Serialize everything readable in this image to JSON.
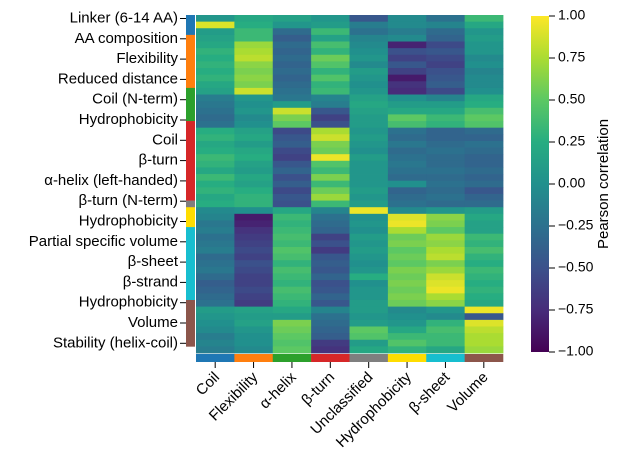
{
  "chart_data": {
    "type": "heatmap",
    "title": "",
    "colorbar": {
      "label": "Pearson correlation",
      "vmin": -1.0,
      "vmax": 1.0,
      "ticks": [
        "1.00",
        "0.75",
        "0.50",
        "0.25",
        "0.00",
        "−0.25",
        "−0.50",
        "−0.75",
        "−1.00"
      ],
      "colormap": "viridis"
    },
    "x_categories": [
      "Coil",
      "Flexibility",
      "α-helix",
      "β-turn",
      "Unclassified",
      "Hydrophobicity",
      "β-sheet",
      "Volume"
    ],
    "x_group_colors": [
      "#1f77b4",
      "#ff7f0e",
      "#2ca02c",
      "#d62728",
      "#7f7f7f",
      "#ffdd00",
      "#17becf",
      "#8c564b"
    ],
    "y_tick_labels": [
      "Linker (6-14 AA)",
      "AA composition",
      "Flexibility",
      "Reduced distance",
      "Coil (N-term)",
      "Hydrophobicity",
      "Coil",
      "β-turn",
      "α-helix (left-handed)",
      "β-turn (N-term)",
      "Hydrophobicity",
      "Partial specific volume",
      "β-sheet",
      "β-strand",
      "Hydrophobicity",
      "Volume",
      "Stability (helix-coil)"
    ],
    "row_groups": [
      {
        "color": "#1f77b4",
        "rows": 3
      },
      {
        "color": "#ff7f0e",
        "rows": 8
      },
      {
        "color": "#2ca02c",
        "rows": 5
      },
      {
        "color": "#d62728",
        "rows": 12
      },
      {
        "color": "#7f7f7f",
        "rows": 1
      },
      {
        "color": "#ffdd00",
        "rows": 3
      },
      {
        "color": "#17becf",
        "rows": 11
      },
      {
        "color": "#8c564b",
        "rows": 7
      }
    ],
    "values": [
      [
        0.05,
        0.2,
        0.15,
        0.05,
        -0.45,
        -0.05,
        -0.25,
        0.35
      ],
      [
        0.9,
        0.25,
        0.05,
        0.1,
        -0.15,
        -0.05,
        -0.1,
        0.2
      ],
      [
        0.1,
        0.35,
        -0.3,
        0.35,
        -0.25,
        -0.15,
        -0.3,
        0.05
      ],
      [
        0.15,
        0.35,
        -0.4,
        0.15,
        -0.1,
        -0.05,
        -0.35,
        0.1
      ],
      [
        0.2,
        0.7,
        -0.3,
        0.4,
        -0.05,
        -0.8,
        -0.55,
        0.05
      ],
      [
        0.3,
        0.75,
        -0.35,
        0.3,
        0.0,
        -0.5,
        -0.45,
        0.05
      ],
      [
        0.25,
        0.8,
        -0.3,
        0.55,
        0.05,
        -0.6,
        -0.55,
        -0.05
      ],
      [
        0.3,
        0.65,
        -0.35,
        0.45,
        -0.05,
        -0.45,
        -0.6,
        0.0
      ],
      [
        0.25,
        0.6,
        -0.3,
        0.3,
        0.1,
        -0.6,
        -0.5,
        -0.1
      ],
      [
        0.3,
        0.65,
        -0.35,
        0.45,
        0.05,
        -0.85,
        -0.45,
        -0.05
      ],
      [
        0.2,
        0.6,
        -0.3,
        0.3,
        0.0,
        -0.7,
        -0.4,
        -0.05
      ],
      [
        0.15,
        0.85,
        -0.25,
        0.35,
        0.05,
        -0.75,
        -0.55,
        0.0
      ],
      [
        -0.15,
        0.05,
        -0.2,
        -0.1,
        0.15,
        0.0,
        -0.1,
        0.2
      ],
      [
        -0.2,
        0.0,
        0.1,
        -0.15,
        0.2,
        0.1,
        0.1,
        0.25
      ],
      [
        -0.25,
        0.05,
        0.85,
        -0.45,
        0.15,
        0.2,
        0.2,
        0.4
      ],
      [
        -0.3,
        -0.05,
        0.6,
        -0.6,
        0.1,
        0.5,
        0.35,
        0.5
      ],
      [
        -0.25,
        0.0,
        0.5,
        -0.5,
        0.1,
        0.4,
        0.3,
        0.45
      ],
      [
        0.25,
        0.15,
        -0.55,
        0.75,
        0.05,
        -0.25,
        -0.35,
        -0.3
      ],
      [
        0.3,
        0.2,
        -0.45,
        0.85,
        0.1,
        -0.3,
        -0.35,
        -0.35
      ],
      [
        0.2,
        0.1,
        -0.4,
        0.6,
        0.05,
        -0.2,
        -0.3,
        -0.25
      ],
      [
        0.25,
        0.2,
        -0.55,
        0.55,
        0.0,
        -0.3,
        -0.25,
        -0.3
      ],
      [
        0.35,
        0.25,
        -0.6,
        0.95,
        0.1,
        -0.25,
        -0.3,
        -0.35
      ],
      [
        0.3,
        0.15,
        -0.45,
        0.45,
        0.05,
        -0.2,
        -0.3,
        -0.35
      ],
      [
        0.2,
        0.1,
        -0.35,
        0.35,
        0.05,
        -0.25,
        -0.25,
        -0.3
      ],
      [
        0.35,
        0.2,
        -0.5,
        0.6,
        0.05,
        -0.3,
        -0.3,
        -0.35
      ],
      [
        0.25,
        0.15,
        -0.4,
        0.35,
        0.05,
        0.0,
        -0.25,
        -0.3
      ],
      [
        0.3,
        0.25,
        -0.55,
        0.55,
        0.1,
        -0.35,
        -0.3,
        -0.45
      ],
      [
        0.2,
        0.3,
        -0.45,
        0.7,
        0.05,
        -0.3,
        -0.25,
        -0.35
      ],
      [
        0.25,
        0.3,
        -0.5,
        0.35,
        0.1,
        -0.25,
        -0.3,
        -0.3
      ],
      [
        -0.05,
        0.0,
        0.2,
        -0.1,
        0.95,
        -0.05,
        0.05,
        0.1
      ],
      [
        -0.1,
        -0.85,
        0.35,
        -0.25,
        0.0,
        0.9,
        0.65,
        0.2
      ],
      [
        -0.2,
        -0.8,
        0.3,
        -0.3,
        0.05,
        0.95,
        0.6,
        0.15
      ],
      [
        -0.15,
        -0.7,
        0.35,
        -0.35,
        0.0,
        0.75,
        0.5,
        0.15
      ],
      [
        -0.25,
        -0.65,
        0.4,
        -0.6,
        0.1,
        0.55,
        0.7,
        0.35
      ],
      [
        -0.2,
        -0.6,
        0.35,
        -0.5,
        0.05,
        0.6,
        0.65,
        0.3
      ],
      [
        -0.15,
        -0.55,
        0.45,
        -0.65,
        0.1,
        0.5,
        0.75,
        0.4
      ],
      [
        -0.3,
        -0.6,
        0.4,
        -0.45,
        0.05,
        0.55,
        0.8,
        0.3
      ],
      [
        -0.25,
        -0.5,
        0.3,
        -0.4,
        0.0,
        0.5,
        0.6,
        0.25
      ],
      [
        -0.2,
        -0.55,
        0.4,
        -0.45,
        0.05,
        0.6,
        0.7,
        0.35
      ],
      [
        -0.3,
        -0.6,
        0.35,
        -0.35,
        0.25,
        0.55,
        0.85,
        0.3
      ],
      [
        -0.4,
        -0.6,
        0.3,
        -0.5,
        0.0,
        0.6,
        0.9,
        0.25
      ],
      [
        -0.35,
        -0.55,
        0.4,
        -0.45,
        0.05,
        0.55,
        0.95,
        0.3
      ],
      [
        -0.3,
        -0.6,
        0.35,
        -0.35,
        0.05,
        0.6,
        0.75,
        0.25
      ],
      [
        -0.25,
        -0.65,
        0.3,
        -0.45,
        0.1,
        0.55,
        0.65,
        0.2
      ],
      [
        0.1,
        0.15,
        0.2,
        -0.1,
        0.1,
        -0.05,
        0.05,
        0.95
      ],
      [
        0.05,
        0.1,
        0.1,
        -0.25,
        0.05,
        0.0,
        -0.05,
        -0.45
      ],
      [
        0.0,
        0.15,
        0.6,
        -0.3,
        0.1,
        0.05,
        0.3,
        0.9
      ],
      [
        -0.05,
        0.05,
        0.55,
        -0.35,
        0.5,
        0.2,
        0.4,
        0.8
      ],
      [
        -0.15,
        0.0,
        0.5,
        -0.4,
        0.45,
        0.35,
        0.35,
        0.75
      ],
      [
        -0.1,
        0.0,
        0.45,
        -0.65,
        0.1,
        0.45,
        0.35,
        0.75
      ],
      [
        -0.15,
        -0.05,
        0.5,
        -0.7,
        0.2,
        0.3,
        0.2,
        0.7
      ]
    ]
  }
}
